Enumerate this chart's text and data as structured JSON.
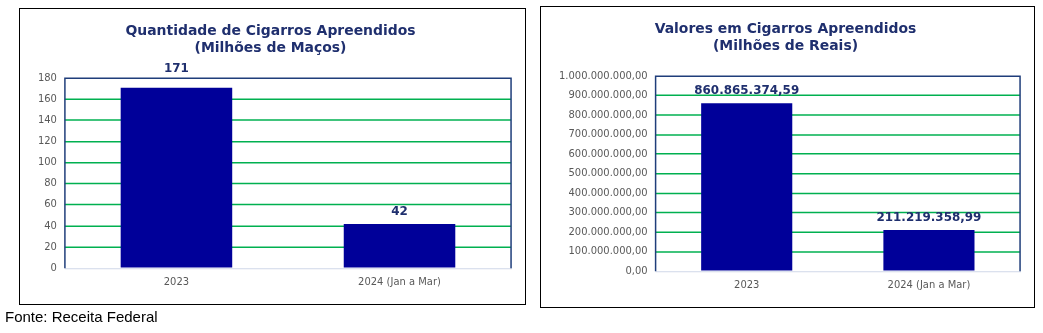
{
  "chart_data": [
    {
      "type": "bar",
      "title": "Quantidade de Cigarros Apreendidos\n(Milhões de Maços)",
      "categories": [
        "2023",
        "2024 (Jan a Mar)"
      ],
      "values": [
        171,
        42
      ],
      "color": "#000099",
      "value_labels": [
        "171",
        "42"
      ],
      "ylim": [
        0,
        180
      ],
      "yticks": [
        0,
        20,
        40,
        60,
        80,
        100,
        120,
        140,
        160,
        180
      ],
      "grid": "y",
      "annotations": [
        "Fonte: Receita Federal"
      ]
    },
    {
      "type": "bar",
      "title": "Valores em Cigarros Apreendidos\n(Milhões de Reais)",
      "categories": [
        "2023",
        "2024 (Jan a Mar)"
      ],
      "values": [
        860865374.59,
        211219358.99
      ],
      "color": "#000099",
      "value_labels": [
        "860.865.374,59",
        "211.219.358,99"
      ],
      "ylim": [
        0,
        1000000000
      ],
      "yticks": [
        {
          "value": 0,
          "label": "0,00"
        },
        {
          "value": 100000000,
          "label": "100.000.000,00"
        },
        {
          "value": 200000000,
          "label": "200.000.000,00"
        },
        {
          "value": 300000000,
          "label": "300.000.000,00"
        },
        {
          "value": 400000000,
          "label": "400.000.000,00"
        },
        {
          "value": 500000000,
          "label": "500.000.000,00"
        },
        {
          "value": 600000000,
          "label": "600.000.000,00"
        },
        {
          "value": 700000000,
          "label": "700.000.000,00"
        },
        {
          "value": 800000000,
          "label": "800.000.000,00"
        },
        {
          "value": 900000000,
          "label": "900.000.000,00"
        },
        {
          "value": 1000000000,
          "label": "1.000.000.000,00"
        }
      ],
      "grid": "y"
    }
  ]
}
